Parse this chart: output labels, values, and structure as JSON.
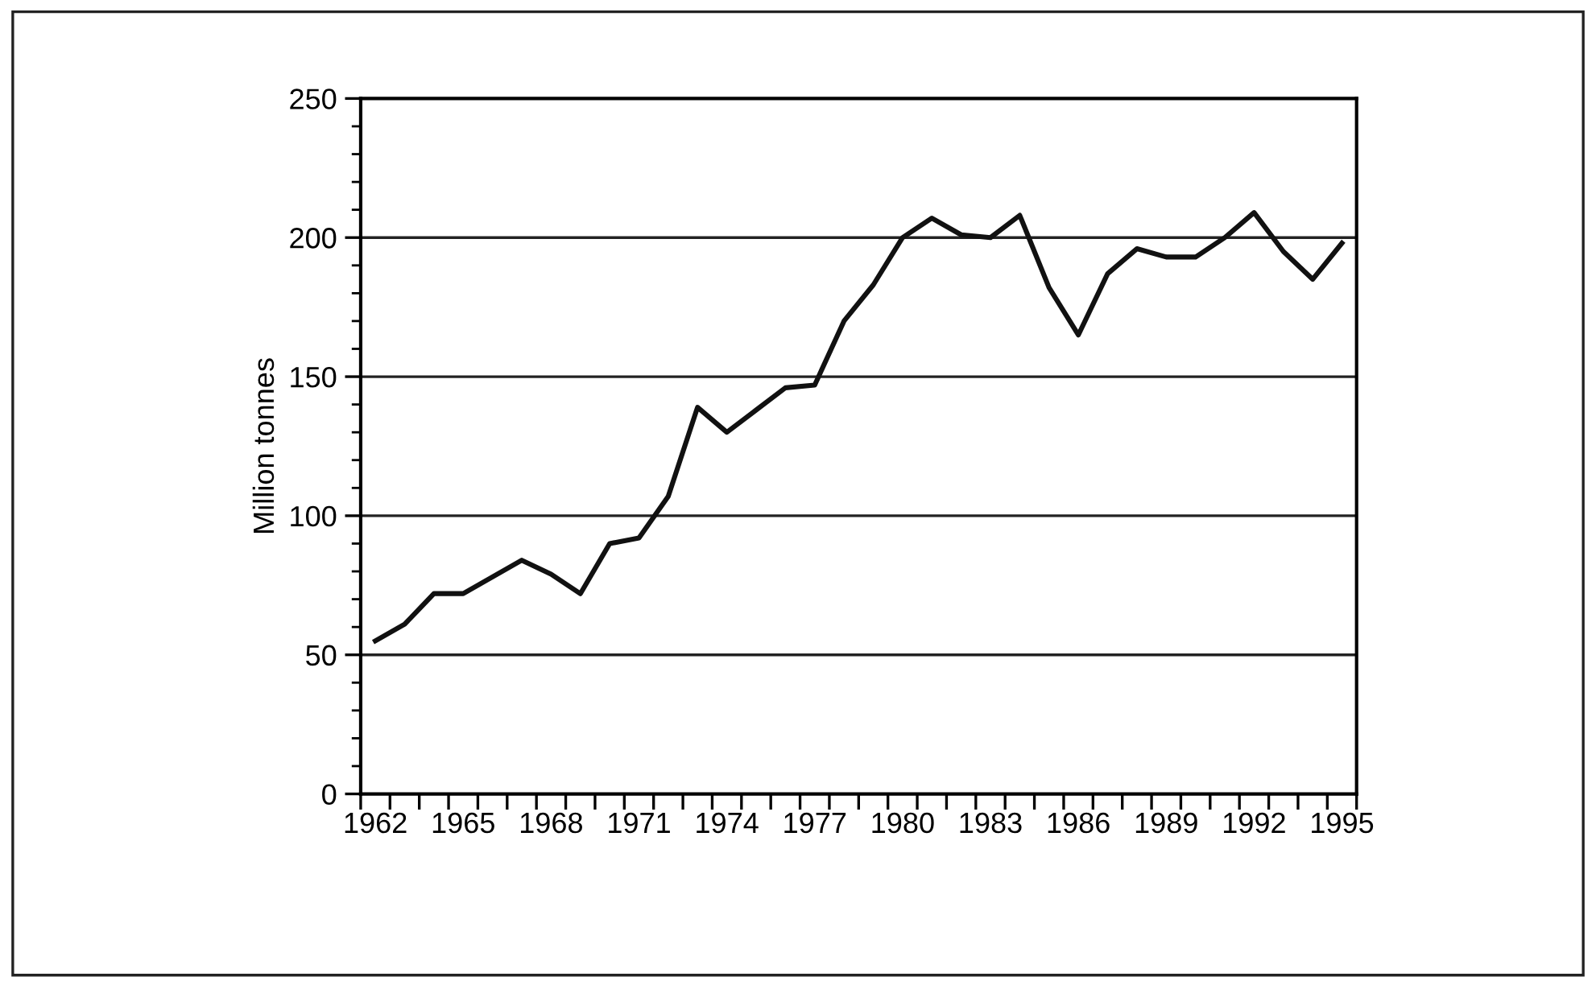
{
  "chart_data": {
    "type": "line",
    "ylabel": "Million tonnes",
    "categories": [
      "1962",
      null,
      null,
      "1965",
      null,
      null,
      "1968",
      null,
      null,
      "1971",
      null,
      null,
      "1974",
      null,
      null,
      "1977",
      null,
      null,
      "1980",
      null,
      null,
      "1983",
      null,
      null,
      "1986",
      null,
      null,
      "1989",
      null,
      null,
      "1992",
      null,
      null,
      "1995"
    ],
    "series": [
      {
        "color": "#111111",
        "values": [
          55,
          61,
          72,
          72,
          78,
          84,
          79,
          72,
          90,
          92,
          107,
          139,
          130,
          138,
          146,
          147,
          170,
          183,
          200,
          207,
          201,
          200,
          208,
          182,
          165,
          187,
          196,
          193,
          193,
          200,
          209,
          195,
          185,
          198
        ]
      }
    ],
    "ylim": [
      0,
      250
    ],
    "yticks": [
      0,
      50,
      100,
      150,
      200,
      250
    ],
    "grid": "y",
    "marker": "none",
    "line_style": "solid"
  }
}
